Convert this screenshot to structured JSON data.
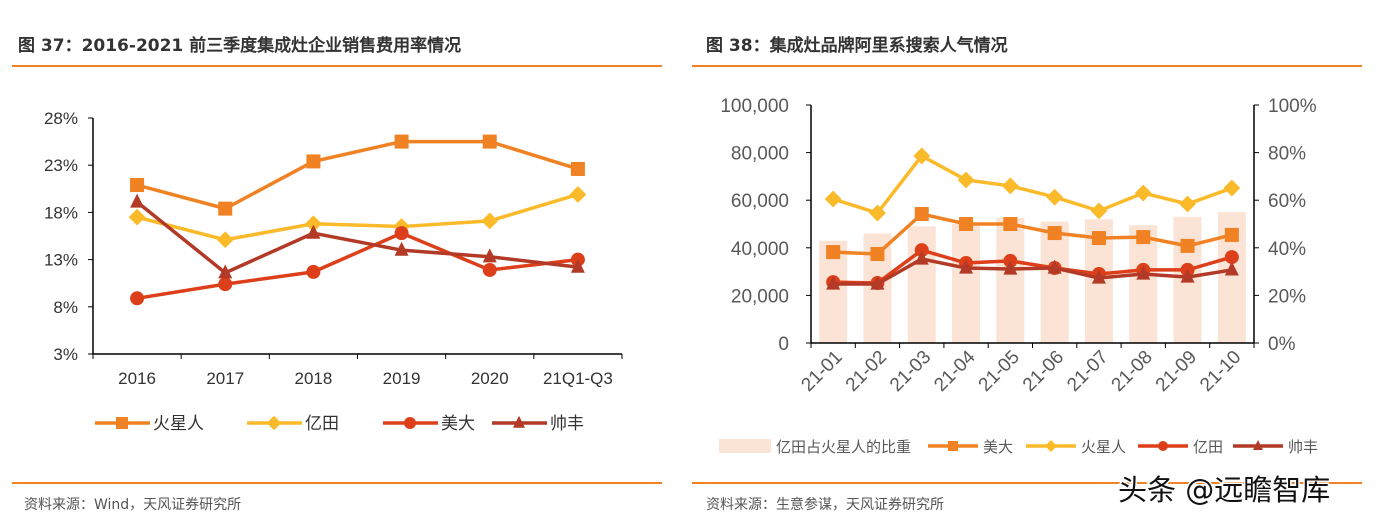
{
  "colors": {
    "accent_rule": "#F08224",
    "bar": "#FBE3D5"
  },
  "watermark": "头条 @远瞻智库",
  "chart_data": [
    {
      "type": "line",
      "title": "图 37：2016-2021 前三季度集成灶企业销售费用率情况",
      "source": "资料来源：Wind，天风证券研究所",
      "categories": [
        "2016",
        "2017",
        "2018",
        "2019",
        "2020",
        "21Q1-Q3"
      ],
      "ylim": [
        3,
        28
      ],
      "yticks": [
        "3%",
        "8%",
        "13%",
        "18%",
        "23%",
        "28%"
      ],
      "ytick_values": [
        3,
        8,
        13,
        18,
        23,
        28
      ],
      "grid": false,
      "legend_position": "bottom",
      "series": [
        {
          "name": "火星人",
          "marker": "square",
          "color": "#F08224",
          "values": [
            20.9,
            18.4,
            23.4,
            25.5,
            25.5,
            22.6
          ]
        },
        {
          "name": "亿田",
          "marker": "diamond",
          "color": "#FBBA2A",
          "values": [
            17.5,
            15.1,
            16.8,
            16.5,
            17.1,
            19.9
          ]
        },
        {
          "name": "美大",
          "marker": "circle",
          "color": "#DD3F1A",
          "values": [
            8.9,
            10.4,
            11.7,
            15.8,
            11.9,
            13.0
          ]
        },
        {
          "name": "帅丰",
          "marker": "triangle",
          "color": "#B23A26",
          "values": [
            19.1,
            11.6,
            15.8,
            14.0,
            13.3,
            12.2
          ]
        }
      ]
    },
    {
      "type": "bar+line",
      "title": "图 38：集成灶品牌阿里系搜索人气情况",
      "source": "资料来源：生意参谋，天风证券研究所",
      "categories": [
        "21-01",
        "21-02",
        "21-03",
        "21-04",
        "21-05",
        "21-06",
        "21-07",
        "21-08",
        "21-09",
        "21-10"
      ],
      "ylim": [
        0,
        100000
      ],
      "yticks": [
        "0",
        "20,000",
        "40,000",
        "60,000",
        "80,000",
        "100,000"
      ],
      "ytick_values": [
        0,
        20000,
        40000,
        60000,
        80000,
        100000
      ],
      "y2lim": [
        0,
        100
      ],
      "y2ticks": [
        "0%",
        "20%",
        "40%",
        "60%",
        "80%",
        "100%"
      ],
      "y2tick_values": [
        0,
        20,
        40,
        60,
        80,
        100
      ],
      "grid": false,
      "legend_position": "bottom",
      "bar_series": {
        "name": "亿田占火星人的比重",
        "axis": "right",
        "color": "#FBE3D5",
        "values": [
          43,
          46,
          49,
          50,
          52.5,
          51,
          52,
          49.5,
          53,
          55
        ]
      },
      "series": [
        {
          "name": "美大",
          "marker": "square",
          "color": "#F08224",
          "values": [
            38200,
            37400,
            54200,
            50000,
            50000,
            46200,
            44100,
            44500,
            40800,
            45400
          ]
        },
        {
          "name": "火星人",
          "marker": "diamond",
          "color": "#FBBA2A",
          "values": [
            60500,
            54600,
            78600,
            68500,
            66000,
            61300,
            55500,
            63000,
            58400,
            65100
          ]
        },
        {
          "name": "亿田",
          "marker": "circle",
          "color": "#DD3F1A",
          "values": [
            25600,
            25200,
            39000,
            33600,
            34500,
            31500,
            29000,
            30700,
            30700,
            36100
          ]
        },
        {
          "name": "帅丰",
          "marker": "triangle",
          "color": "#B23A26",
          "values": [
            24800,
            24800,
            35300,
            31500,
            31100,
            31500,
            27300,
            29000,
            27700,
            30700
          ]
        }
      ]
    }
  ]
}
